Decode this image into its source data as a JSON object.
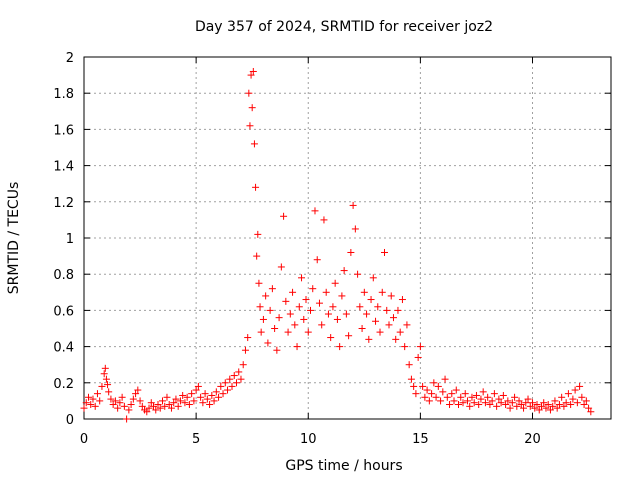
{
  "chart_data": {
    "type": "scatter",
    "title": "Day 357 of 2024, SRMTID for receiver joz2",
    "xlabel": "GPS time / hours",
    "ylabel": "SRMTID / TECUs",
    "xlim": [
      0,
      23.5
    ],
    "ylim": [
      0,
      2
    ],
    "xticks": [
      0,
      5,
      10,
      15,
      20
    ],
    "xtick_labels": [
      "0",
      "5",
      "10",
      "15",
      "20"
    ],
    "yticks": [
      0,
      0.2,
      0.4,
      0.6,
      0.8,
      1,
      1.2,
      1.4,
      1.6,
      1.8,
      2
    ],
    "ytick_labels": [
      "0",
      "0.2",
      "0.4",
      "0.6",
      "0.8",
      "1",
      "1.2",
      "1.4",
      "1.6",
      "1.8",
      "2"
    ],
    "grid": true,
    "marker": "+",
    "color": "#ff0000",
    "series": [
      {
        "name": "SRMTID",
        "points": [
          [
            0.0,
            0.06
          ],
          [
            0.1,
            0.09
          ],
          [
            0.2,
            0.12
          ],
          [
            0.3,
            0.08
          ],
          [
            0.4,
            0.11
          ],
          [
            0.5,
            0.07
          ],
          [
            0.6,
            0.14
          ],
          [
            0.7,
            0.1
          ],
          [
            0.8,
            0.18
          ],
          [
            0.9,
            0.25
          ],
          [
            0.95,
            0.28
          ],
          [
            1.0,
            0.22
          ],
          [
            1.05,
            0.19
          ],
          [
            1.1,
            0.15
          ],
          [
            1.2,
            0.11
          ],
          [
            1.3,
            0.08
          ],
          [
            1.4,
            0.1
          ],
          [
            1.5,
            0.06
          ],
          [
            1.6,
            0.09
          ],
          [
            1.7,
            0.12
          ],
          [
            1.8,
            0.07
          ],
          [
            1.9,
            0.0
          ],
          [
            2.0,
            0.05
          ],
          [
            2.1,
            0.08
          ],
          [
            2.2,
            0.11
          ],
          [
            2.3,
            0.14
          ],
          [
            2.4,
            0.16
          ],
          [
            2.5,
            0.1
          ],
          [
            2.6,
            0.07
          ],
          [
            2.7,
            0.05
          ],
          [
            2.8,
            0.04
          ],
          [
            2.9,
            0.06
          ],
          [
            3.0,
            0.09
          ],
          [
            3.1,
            0.07
          ],
          [
            3.2,
            0.05
          ],
          [
            3.3,
            0.08
          ],
          [
            3.4,
            0.06
          ],
          [
            3.5,
            0.1
          ],
          [
            3.6,
            0.07
          ],
          [
            3.7,
            0.12
          ],
          [
            3.8,
            0.08
          ],
          [
            3.9,
            0.06
          ],
          [
            4.0,
            0.09
          ],
          [
            4.1,
            0.11
          ],
          [
            4.2,
            0.07
          ],
          [
            4.3,
            0.1
          ],
          [
            4.4,
            0.13
          ],
          [
            4.5,
            0.09
          ],
          [
            4.6,
            0.12
          ],
          [
            4.7,
            0.08
          ],
          [
            4.8,
            0.14
          ],
          [
            4.9,
            0.1
          ],
          [
            5.0,
            0.16
          ],
          [
            5.1,
            0.18
          ],
          [
            5.2,
            0.12
          ],
          [
            5.3,
            0.09
          ],
          [
            5.4,
            0.14
          ],
          [
            5.5,
            0.11
          ],
          [
            5.6,
            0.08
          ],
          [
            5.7,
            0.13
          ],
          [
            5.8,
            0.1
          ],
          [
            5.9,
            0.15
          ],
          [
            6.0,
            0.12
          ],
          [
            6.1,
            0.18
          ],
          [
            6.2,
            0.14
          ],
          [
            6.3,
            0.2
          ],
          [
            6.4,
            0.16
          ],
          [
            6.5,
            0.22
          ],
          [
            6.6,
            0.18
          ],
          [
            6.7,
            0.24
          ],
          [
            6.8,
            0.2
          ],
          [
            6.9,
            0.26
          ],
          [
            7.0,
            0.22
          ],
          [
            7.1,
            0.3
          ],
          [
            7.2,
            0.38
          ],
          [
            7.3,
            0.45
          ],
          [
            7.35,
            1.8
          ],
          [
            7.4,
            1.62
          ],
          [
            7.45,
            1.9
          ],
          [
            7.5,
            1.72
          ],
          [
            7.55,
            1.92
          ],
          [
            7.6,
            1.52
          ],
          [
            7.65,
            1.28
          ],
          [
            7.7,
            0.9
          ],
          [
            7.75,
            1.02
          ],
          [
            7.8,
            0.75
          ],
          [
            7.85,
            0.62
          ],
          [
            7.9,
            0.48
          ],
          [
            8.0,
            0.55
          ],
          [
            8.1,
            0.68
          ],
          [
            8.2,
            0.42
          ],
          [
            8.3,
            0.6
          ],
          [
            8.4,
            0.72
          ],
          [
            8.5,
            0.5
          ],
          [
            8.6,
            0.38
          ],
          [
            8.7,
            0.56
          ],
          [
            8.8,
            0.84
          ],
          [
            8.9,
            1.12
          ],
          [
            9.0,
            0.65
          ],
          [
            9.1,
            0.48
          ],
          [
            9.2,
            0.58
          ],
          [
            9.3,
            0.7
          ],
          [
            9.4,
            0.52
          ],
          [
            9.5,
            0.4
          ],
          [
            9.6,
            0.62
          ],
          [
            9.7,
            0.78
          ],
          [
            9.8,
            0.55
          ],
          [
            9.9,
            0.66
          ],
          [
            10.0,
            0.48
          ],
          [
            10.1,
            0.6
          ],
          [
            10.2,
            0.72
          ],
          [
            10.3,
            1.15
          ],
          [
            10.4,
            0.88
          ],
          [
            10.5,
            0.64
          ],
          [
            10.6,
            0.52
          ],
          [
            10.7,
            1.1
          ],
          [
            10.8,
            0.7
          ],
          [
            10.9,
            0.58
          ],
          [
            11.0,
            0.45
          ],
          [
            11.1,
            0.62
          ],
          [
            11.2,
            0.75
          ],
          [
            11.3,
            0.55
          ],
          [
            11.4,
            0.4
          ],
          [
            11.5,
            0.68
          ],
          [
            11.6,
            0.82
          ],
          [
            11.7,
            0.58
          ],
          [
            11.8,
            0.46
          ],
          [
            11.9,
            0.92
          ],
          [
            12.0,
            1.18
          ],
          [
            12.1,
            1.05
          ],
          [
            12.2,
            0.8
          ],
          [
            12.3,
            0.62
          ],
          [
            12.4,
            0.5
          ],
          [
            12.5,
            0.7
          ],
          [
            12.6,
            0.58
          ],
          [
            12.7,
            0.44
          ],
          [
            12.8,
            0.66
          ],
          [
            12.9,
            0.78
          ],
          [
            13.0,
            0.54
          ],
          [
            13.1,
            0.62
          ],
          [
            13.2,
            0.48
          ],
          [
            13.3,
            0.7
          ],
          [
            13.4,
            0.92
          ],
          [
            13.5,
            0.6
          ],
          [
            13.6,
            0.52
          ],
          [
            13.7,
            0.68
          ],
          [
            13.8,
            0.56
          ],
          [
            13.9,
            0.44
          ],
          [
            14.0,
            0.6
          ],
          [
            14.1,
            0.48
          ],
          [
            14.2,
            0.66
          ],
          [
            14.3,
            0.4
          ],
          [
            14.4,
            0.52
          ],
          [
            14.5,
            0.3
          ],
          [
            14.6,
            0.22
          ],
          [
            14.7,
            0.18
          ],
          [
            14.8,
            0.14
          ],
          [
            14.9,
            0.34
          ],
          [
            15.0,
            0.4
          ],
          [
            15.1,
            0.18
          ],
          [
            15.2,
            0.12
          ],
          [
            15.3,
            0.16
          ],
          [
            15.4,
            0.1
          ],
          [
            15.5,
            0.14
          ],
          [
            15.6,
            0.2
          ],
          [
            15.7,
            0.12
          ],
          [
            15.8,
            0.18
          ],
          [
            15.9,
            0.1
          ],
          [
            16.0,
            0.15
          ],
          [
            16.1,
            0.22
          ],
          [
            16.2,
            0.12
          ],
          [
            16.3,
            0.08
          ],
          [
            16.4,
            0.14
          ],
          [
            16.5,
            0.1
          ],
          [
            16.6,
            0.16
          ],
          [
            16.7,
            0.08
          ],
          [
            16.8,
            0.12
          ],
          [
            16.9,
            0.09
          ],
          [
            17.0,
            0.14
          ],
          [
            17.1,
            0.1
          ],
          [
            17.2,
            0.07
          ],
          [
            17.3,
            0.12
          ],
          [
            17.4,
            0.09
          ],
          [
            17.5,
            0.13
          ],
          [
            17.6,
            0.08
          ],
          [
            17.7,
            0.11
          ],
          [
            17.8,
            0.15
          ],
          [
            17.9,
            0.09
          ],
          [
            18.0,
            0.12
          ],
          [
            18.1,
            0.08
          ],
          [
            18.2,
            0.1
          ],
          [
            18.3,
            0.14
          ],
          [
            18.4,
            0.07
          ],
          [
            18.5,
            0.11
          ],
          [
            18.6,
            0.09
          ],
          [
            18.7,
            0.13
          ],
          [
            18.8,
            0.08
          ],
          [
            18.9,
            0.1
          ],
          [
            19.0,
            0.06
          ],
          [
            19.1,
            0.09
          ],
          [
            19.2,
            0.12
          ],
          [
            19.3,
            0.07
          ],
          [
            19.4,
            0.1
          ],
          [
            19.5,
            0.08
          ],
          [
            19.6,
            0.06
          ],
          [
            19.7,
            0.09
          ],
          [
            19.8,
            0.11
          ],
          [
            19.9,
            0.07
          ],
          [
            20.0,
            0.09
          ],
          [
            20.1,
            0.06
          ],
          [
            20.2,
            0.08
          ],
          [
            20.3,
            0.05
          ],
          [
            20.4,
            0.07
          ],
          [
            20.5,
            0.09
          ],
          [
            20.6,
            0.06
          ],
          [
            20.7,
            0.08
          ],
          [
            20.8,
            0.05
          ],
          [
            20.9,
            0.07
          ],
          [
            21.0,
            0.1
          ],
          [
            21.1,
            0.06
          ],
          [
            21.2,
            0.08
          ],
          [
            21.3,
            0.12
          ],
          [
            21.4,
            0.07
          ],
          [
            21.5,
            0.09
          ],
          [
            21.6,
            0.14
          ],
          [
            21.7,
            0.08
          ],
          [
            21.8,
            0.11
          ],
          [
            21.9,
            0.16
          ],
          [
            22.0,
            0.09
          ],
          [
            22.1,
            0.18
          ],
          [
            22.2,
            0.12
          ],
          [
            22.3,
            0.08
          ],
          [
            22.4,
            0.1
          ],
          [
            22.5,
            0.06
          ],
          [
            22.6,
            0.04
          ]
        ]
      }
    ]
  }
}
